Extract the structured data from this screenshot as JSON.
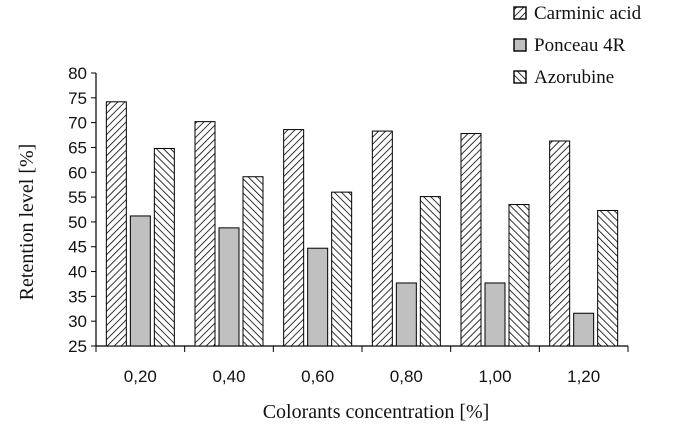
{
  "chart_data": {
    "type": "bar",
    "xlabel": "Colorants concentration [%]",
    "ylabel": "Retention level [%]",
    "categories": [
      "0,20",
      "0,40",
      "0,60",
      "0,80",
      "1,00",
      "1,20"
    ],
    "ylim": [
      25,
      80
    ],
    "yticks": [
      25,
      30,
      35,
      40,
      45,
      50,
      55,
      60,
      65,
      70,
      75,
      80
    ],
    "grid": false,
    "legend_position": "top-right",
    "series": [
      {
        "name": "Carminic acid",
        "pattern": "diagonal-down",
        "fill": "#ffffff",
        "values": [
          74.2,
          70.2,
          68.6,
          68.3,
          67.8,
          66.3
        ]
      },
      {
        "name": "Ponceau 4R",
        "pattern": "solid",
        "fill": "#c0c0c0",
        "values": [
          51.2,
          48.8,
          44.7,
          37.7,
          37.7,
          31.6
        ]
      },
      {
        "name": "Azorubine",
        "pattern": "diagonal-up",
        "fill": "#ffffff",
        "values": [
          64.8,
          59.1,
          56.0,
          55.1,
          53.5,
          52.3
        ]
      }
    ]
  }
}
